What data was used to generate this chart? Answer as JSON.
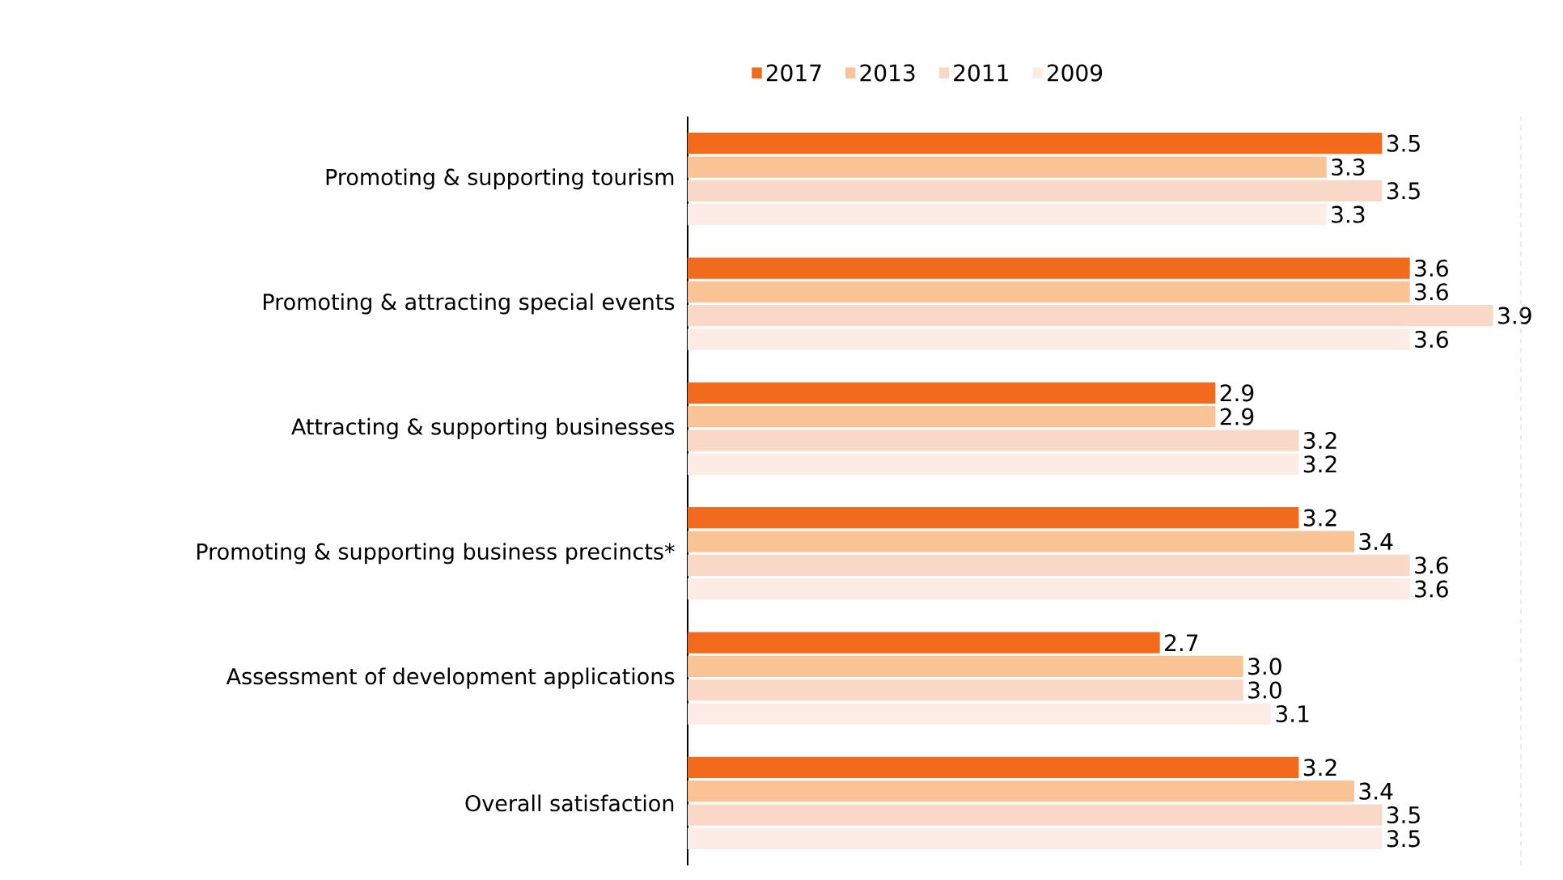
{
  "chart_data": {
    "type": "bar",
    "orientation": "horizontal",
    "categories": [
      "Promoting & supporting  tourism",
      "Promoting & attracting special events",
      "Attracting & supporting businesses",
      "Promoting & supporting business precincts*",
      "Assessment of development applications",
      "Overall satisfaction"
    ],
    "series": [
      {
        "name": "2017",
        "color": "#f26a1b",
        "values": [
          3.5,
          3.6,
          2.9,
          3.2,
          2.7,
          3.2
        ],
        "value_labels": [
          "3.5",
          "3.6",
          "2.9",
          "3.2",
          "2.7",
          "3.2"
        ]
      },
      {
        "name": "2013",
        "color": "#f9c396",
        "values": [
          3.3,
          3.6,
          2.9,
          3.4,
          3.0,
          3.4
        ],
        "value_labels": [
          "3.3",
          "3.6",
          "2.9",
          "3.4",
          "3.0",
          "3.4"
        ]
      },
      {
        "name": "2011",
        "color": "#fad8c8",
        "values": [
          3.5,
          3.9,
          3.2,
          3.6,
          3.0,
          3.5
        ],
        "value_labels": [
          "3.5",
          "3.9",
          "3.2",
          "3.6",
          "3.0",
          "3.5"
        ]
      },
      {
        "name": "2009",
        "color": "#fdece5",
        "values": [
          3.3,
          3.6,
          3.2,
          3.6,
          3.1,
          3.5
        ],
        "value_labels": [
          "3.3",
          "3.6",
          "3.2",
          "3.6",
          "3.1",
          "3.5"
        ]
      }
    ],
    "xlim": [
      1,
      4
    ],
    "legend": "top",
    "tick_labels": "y"
  }
}
